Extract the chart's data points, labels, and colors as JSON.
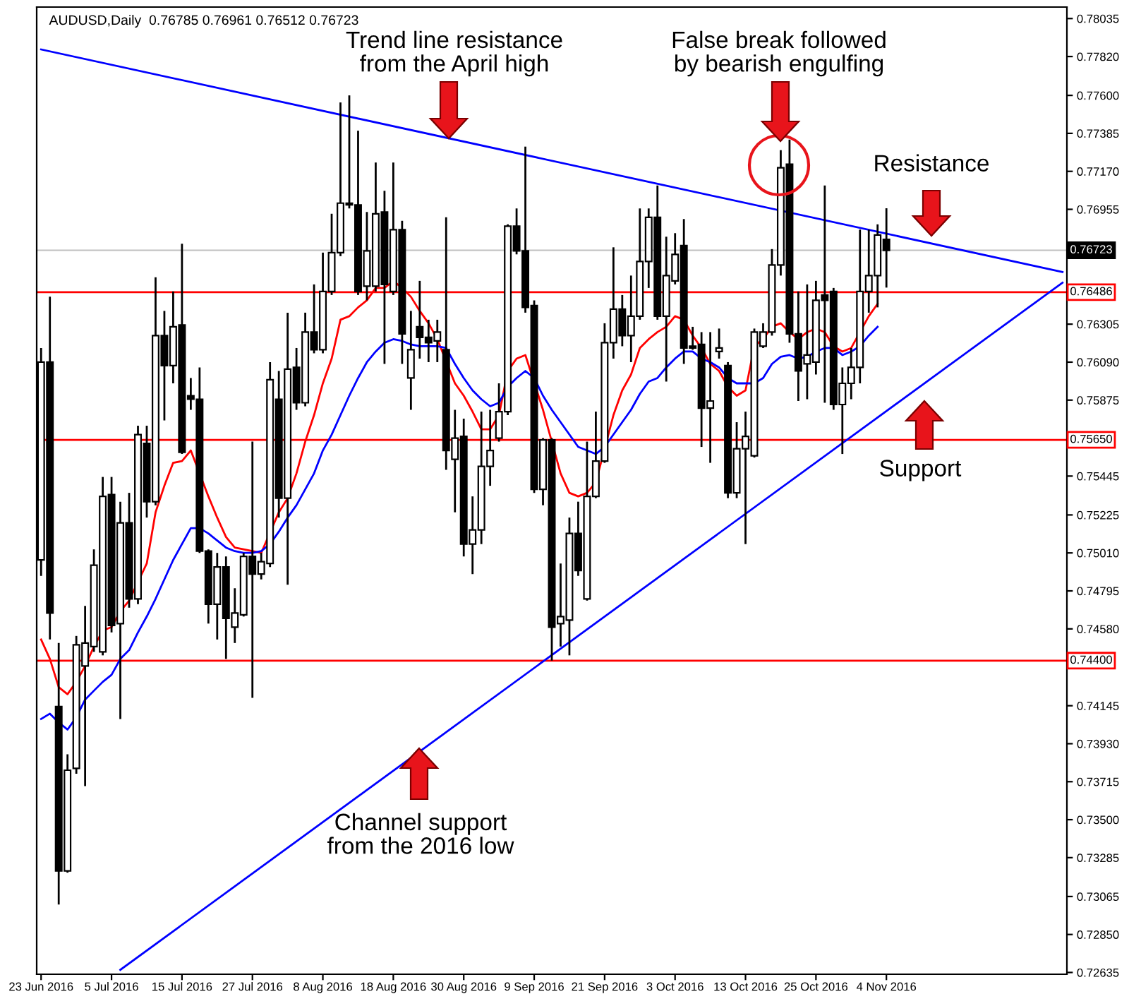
{
  "chart_data": {
    "type": "candlestick",
    "title": "AUDUSD,Daily  0.76785 0.76961 0.76512 0.76723",
    "annotations": [
      "Trend line resistance\nfrom the April high",
      "False break followed\nby bearish engulfing",
      "Resistance",
      "Support",
      "Channel support\nfrom the 2016 low"
    ],
    "categories": [
      "23 Jun 2016",
      null,
      null,
      null,
      null,
      null,
      null,
      null,
      "5 Jul 2016",
      null,
      null,
      null,
      null,
      null,
      null,
      null,
      "15 Jul 2016",
      null,
      null,
      null,
      null,
      null,
      null,
      null,
      "27 Jul 2016",
      null,
      null,
      null,
      null,
      null,
      null,
      null,
      "8 Aug 2016",
      null,
      null,
      null,
      null,
      null,
      null,
      null,
      "18 Aug 2016",
      null,
      null,
      null,
      null,
      null,
      null,
      null,
      "30 Aug 2016",
      null,
      null,
      null,
      null,
      null,
      null,
      null,
      "9 Sep 2016",
      null,
      null,
      null,
      null,
      null,
      null,
      null,
      "21 Sep 2016",
      null,
      null,
      null,
      null,
      null,
      null,
      null,
      "3 Oct 2016",
      null,
      null,
      null,
      null,
      null,
      null,
      null,
      "13 Oct 2016",
      null,
      null,
      null,
      null,
      null,
      null,
      null,
      "25 Oct 2016",
      null,
      null,
      null,
      null,
      null,
      null,
      null,
      "4 Nov 2016",
      null,
      null,
      null,
      null,
      null,
      null,
      null,
      null,
      null,
      null,
      null,
      null,
      null,
      null,
      null,
      null,
      null,
      null,
      null,
      null
    ],
    "ohlc": [
      [
        0.7497,
        0.7617,
        0.7488,
        0.7609
      ],
      [
        0.7609,
        0.7646,
        0.7452,
        0.7467
      ],
      [
        0.7414,
        0.745,
        0.7302,
        0.7321
      ],
      [
        0.7321,
        0.7387,
        0.732,
        0.7378
      ],
      [
        0.7379,
        0.7454,
        0.7376,
        0.7449
      ],
      [
        0.7437,
        0.7471,
        0.7369,
        0.745
      ],
      [
        0.7448,
        0.7503,
        0.7445,
        0.7494
      ],
      [
        0.7445,
        0.7544,
        0.7443,
        0.7533
      ],
      [
        0.7534,
        0.7544,
        0.7456,
        0.746
      ],
      [
        0.7461,
        0.753,
        0.7407,
        0.7518
      ],
      [
        0.7518,
        0.7535,
        0.747,
        0.7475
      ],
      [
        0.7475,
        0.7573,
        0.7472,
        0.7568
      ],
      [
        0.7563,
        0.7573,
        0.7521,
        0.753
      ],
      [
        0.753,
        0.7657,
        0.7528,
        0.7624
      ],
      [
        0.7624,
        0.7638,
        0.7576,
        0.7607
      ],
      [
        0.7607,
        0.7649,
        0.7597,
        0.7629
      ],
      [
        0.763,
        0.7676,
        0.7557,
        0.7558
      ],
      [
        0.759,
        0.76,
        0.7582,
        0.7588
      ],
      [
        0.7588,
        0.7606,
        0.7501,
        0.7502
      ],
      [
        0.7502,
        0.7503,
        0.7461,
        0.7472
      ],
      [
        0.7472,
        0.7501,
        0.7452,
        0.7493
      ],
      [
        0.7493,
        0.7499,
        0.7441,
        0.7464
      ],
      [
        0.7459,
        0.7481,
        0.745,
        0.7467
      ],
      [
        0.7466,
        0.7501,
        0.7465,
        0.7499
      ],
      [
        0.7499,
        0.7564,
        0.7419,
        0.7489
      ],
      [
        0.7489,
        0.7501,
        0.7486,
        0.7496
      ],
      [
        0.7495,
        0.7609,
        0.7493,
        0.7599
      ],
      [
        0.7588,
        0.7604,
        0.7521,
        0.7532
      ],
      [
        0.7532,
        0.7637,
        0.7483,
        0.7605
      ],
      [
        0.7606,
        0.7617,
        0.7582,
        0.7586
      ],
      [
        0.7586,
        0.7637,
        0.7584,
        0.7626
      ],
      [
        0.7626,
        0.7653,
        0.7614,
        0.7616
      ],
      [
        0.7616,
        0.7671,
        0.7614,
        0.7649
      ],
      [
        0.7649,
        0.7693,
        0.7647,
        0.7671
      ],
      [
        0.7671,
        0.7756,
        0.7669,
        0.7699
      ],
      [
        0.7699,
        0.776,
        0.7696,
        0.7698
      ],
      [
        0.7698,
        0.774,
        0.7647,
        0.7649
      ],
      [
        0.7652,
        0.7694,
        0.7644,
        0.7672
      ],
      [
        0.7652,
        0.7722,
        0.7649,
        0.7693
      ],
      [
        0.7694,
        0.7706,
        0.7608,
        0.7653
      ],
      [
        0.7649,
        0.7722,
        0.7647,
        0.7684
      ],
      [
        0.7684,
        0.7689,
        0.7608,
        0.7625
      ],
      [
        0.76,
        0.7638,
        0.7582,
        0.7616
      ],
      [
        0.7629,
        0.7655,
        0.7611,
        0.7623
      ],
      [
        0.7623,
        0.7633,
        0.7609,
        0.762
      ],
      [
        0.7621,
        0.7633,
        0.7609,
        0.7626
      ],
      [
        0.7616,
        0.7691,
        0.7548,
        0.7559
      ],
      [
        0.7554,
        0.7582,
        0.7524,
        0.7566
      ],
      [
        0.7567,
        0.7577,
        0.7499,
        0.7506
      ],
      [
        0.7506,
        0.7533,
        0.7489,
        0.7514
      ],
      [
        0.7514,
        0.7581,
        0.7506,
        0.755
      ],
      [
        0.755,
        0.7582,
        0.7539,
        0.7559
      ],
      [
        0.7566,
        0.7597,
        0.7564,
        0.7581
      ],
      [
        0.7581,
        0.7687,
        0.7579,
        0.7686
      ],
      [
        0.7686,
        0.7696,
        0.767,
        0.7672
      ],
      [
        0.7672,
        0.7731,
        0.7637,
        0.764
      ],
      [
        0.7641,
        0.7644,
        0.7535,
        0.7537
      ],
      [
        0.7537,
        0.7566,
        0.7528,
        0.7565
      ],
      [
        0.7565,
        0.7566,
        0.744,
        0.7459
      ],
      [
        0.7461,
        0.7495,
        0.7448,
        0.7465
      ],
      [
        0.7463,
        0.7521,
        0.7443,
        0.7512
      ],
      [
        0.7512,
        0.753,
        0.7488,
        0.7491
      ],
      [
        0.7475,
        0.7564,
        0.7474,
        0.7533
      ],
      [
        0.7533,
        0.7581,
        0.7532,
        0.7553
      ],
      [
        0.7553,
        0.7631,
        0.7552,
        0.762
      ],
      [
        0.762,
        0.7674,
        0.7611,
        0.7639
      ],
      [
        0.7639,
        0.7647,
        0.7618,
        0.7624
      ],
      [
        0.7624,
        0.7658,
        0.7609,
        0.7635
      ],
      [
        0.7635,
        0.7696,
        0.7633,
        0.7666
      ],
      [
        0.7666,
        0.7696,
        0.7651,
        0.7691
      ],
      [
        0.7691,
        0.7709,
        0.7633,
        0.7635
      ],
      [
        0.7635,
        0.768,
        0.7598,
        0.7658
      ],
      [
        0.7655,
        0.7682,
        0.7653,
        0.767
      ],
      [
        0.7675,
        0.769,
        0.7608,
        0.7617
      ],
      [
        0.7618,
        0.7629,
        0.7616,
        0.7617
      ],
      [
        0.7619,
        0.7626,
        0.7561,
        0.7583
      ],
      [
        0.7583,
        0.7626,
        0.7552,
        0.7587
      ],
      [
        0.7615,
        0.7628,
        0.7611,
        0.7617
      ],
      [
        0.7607,
        0.7609,
        0.7532,
        0.7535
      ],
      [
        0.7535,
        0.7575,
        0.7532,
        0.756
      ],
      [
        0.756,
        0.7581,
        0.7506,
        0.7567
      ],
      [
        0.7556,
        0.7628,
        0.7555,
        0.7626
      ],
      [
        0.7618,
        0.7631,
        0.7617,
        0.7626
      ],
      [
        0.7626,
        0.7673,
        0.7624,
        0.7664
      ],
      [
        0.7664,
        0.7729,
        0.7658,
        0.7719
      ],
      [
        0.7721,
        0.7735,
        0.762,
        0.7625
      ],
      [
        0.7625,
        0.7649,
        0.7587,
        0.7604
      ],
      [
        0.7608,
        0.7653,
        0.7588,
        0.7613
      ],
      [
        0.7609,
        0.7655,
        0.7602,
        0.7644
      ],
      [
        0.7647,
        0.7709,
        0.7586,
        0.7644
      ],
      [
        0.7649,
        0.7651,
        0.7582,
        0.7585
      ],
      [
        0.7585,
        0.7606,
        0.7557,
        0.7597
      ],
      [
        0.7597,
        0.7617,
        0.7588,
        0.7606
      ],
      [
        0.7606,
        0.7684,
        0.7597,
        0.7649
      ],
      [
        0.7649,
        0.7684,
        0.7637,
        0.7658
      ],
      [
        0.7658,
        0.7687,
        0.764,
        0.7681
      ],
      [
        0.76785,
        0.76961,
        0.76512,
        0.76723
      ],
      null,
      null,
      null,
      null,
      null,
      null,
      null,
      null,
      null,
      null,
      null,
      null,
      null,
      null,
      null,
      null,
      null,
      null,
      null,
      null
    ],
    "series": [
      {
        "type": "line",
        "color": "#ff0000",
        "values": [
          0.7452,
          0.7441,
          0.7425,
          0.7421,
          0.7428,
          0.7437,
          0.7448,
          0.7457,
          0.7459,
          0.7468,
          0.7474,
          null,
          0.7495,
          0.7524,
          0.7539,
          0.7552,
          0.7553,
          0.7559,
          null,
          0.7533,
          0.7521,
          0.751,
          0.7504,
          0.7503,
          0.7502,
          0.7501,
          null,
          0.7524,
          0.7532,
          0.7546,
          0.7564,
          0.7579,
          0.7597,
          0.7611,
          0.7633,
          0.7635,
          0.764,
          0.7644,
          0.7651,
          0.7651,
          0.7655,
          0.7651,
          0.7646,
          0.7638,
          0.7631,
          0.7622,
          null,
          0.7597,
          0.759,
          0.7581,
          0.7571,
          0.7571,
          0.7579,
          0.7604,
          0.7611,
          0.7613,
          null,
          0.7582,
          null,
          0.7546,
          0.7535,
          0.7533,
          0.7535,
          0.7541,
          null,
          0.7579,
          0.7593,
          0.7602,
          0.7617,
          0.7622,
          0.7626,
          0.7629,
          0.7635,
          0.7633,
          0.7624,
          0.7617,
          0.7608,
          0.7604,
          0.7595,
          0.759,
          0.7593,
          0.7618,
          0.7622,
          0.7629,
          0.7631,
          0.7626,
          0.7622,
          0.7626,
          0.7628,
          0.7626,
          0.7618,
          0.7615,
          0.7617,
          null,
          0.7635,
          0.7642,
          null,
          null,
          null,
          null,
          null,
          null,
          null,
          null,
          null,
          null,
          null,
          null,
          null,
          null,
          null,
          null,
          null,
          null,
          null,
          null,
          null
        ]
      },
      {
        "type": "line",
        "color": "#0000ff",
        "values": [
          0.7407,
          0.741,
          0.7405,
          0.7401,
          0.7408,
          0.7418,
          0.7423,
          0.7428,
          0.7432,
          0.7441,
          0.7446,
          0.7456,
          0.7465,
          0.7475,
          0.7486,
          0.7497,
          0.7506,
          0.7515,
          0.7515,
          0.7512,
          0.7508,
          0.7504,
          0.7502,
          0.7501,
          0.7501,
          0.7502,
          0.7506,
          0.7513,
          0.7521,
          0.7528,
          0.7537,
          0.7546,
          0.7559,
          0.7568,
          0.7579,
          0.759,
          0.76,
          0.7609,
          0.7615,
          0.762,
          0.7622,
          0.7621,
          0.7619,
          0.7618,
          0.7618,
          0.7618,
          0.7617,
          0.7608,
          0.76,
          0.7593,
          0.7588,
          0.7584,
          0.7586,
          0.7595,
          0.76,
          0.7604,
          0.76,
          0.759,
          0.7582,
          0.7575,
          0.7568,
          0.7561,
          0.7559,
          0.7557,
          0.7561,
          0.7568,
          0.7575,
          0.7582,
          0.7591,
          0.7598,
          0.76,
          0.7606,
          0.7611,
          0.7615,
          0.7615,
          0.7611,
          0.7609,
          0.7606,
          0.76,
          0.7597,
          0.7597,
          0.7597,
          0.76,
          0.7608,
          0.7612,
          0.7613,
          0.7611,
          0.7612,
          0.7615,
          0.7617,
          0.7617,
          0.7613,
          0.7615,
          0.7618,
          0.7624,
          0.7629,
          null,
          null,
          null,
          null,
          null,
          null,
          null,
          null,
          null,
          null,
          null,
          null,
          null,
          null,
          null,
          null,
          null,
          null,
          null,
          null,
          null
        ]
      },
      {
        "type": "line",
        "color": "#0000ff",
        "values": [
          0.7786,
          null,
          null,
          null,
          null,
          null,
          null,
          null,
          null,
          null,
          null,
          null,
          null,
          null,
          null,
          null,
          null,
          null,
          null,
          null,
          null,
          null,
          null,
          null,
          null,
          null,
          null,
          null,
          null,
          null,
          null,
          null,
          null,
          null,
          null,
          null,
          null,
          null,
          null,
          null,
          null,
          null,
          null,
          null,
          null,
          null,
          null,
          null,
          null,
          null,
          null,
          null,
          null,
          null,
          null,
          null,
          null,
          null,
          null,
          null,
          null,
          null,
          null,
          null,
          null,
          null,
          null,
          null,
          null,
          null,
          null,
          null,
          null,
          null,
          null,
          null,
          null,
          null,
          null,
          null,
          null,
          null,
          null,
          null,
          null,
          null,
          null,
          null,
          null,
          null,
          null,
          null,
          null,
          null,
          null,
          null,
          null,
          null,
          null,
          null,
          null,
          null,
          null,
          null,
          null,
          null,
          null,
          null,
          null,
          null,
          null,
          null,
          null,
          null,
          null,
          null,
          0.766
        ]
      },
      {
        "type": "line",
        "color": "#0000ff",
        "values": [
          null,
          null,
          null,
          null,
          null,
          null,
          null,
          null,
          null,
          0.7265,
          null,
          null,
          null,
          null,
          null,
          null,
          null,
          null,
          null,
          null,
          null,
          null,
          null,
          null,
          null,
          null,
          null,
          null,
          null,
          null,
          null,
          null,
          null,
          null,
          null,
          null,
          null,
          null,
          null,
          null,
          null,
          null,
          null,
          null,
          null,
          null,
          null,
          null,
          null,
          null,
          null,
          null,
          null,
          null,
          null,
          null,
          null,
          null,
          null,
          null,
          null,
          null,
          null,
          null,
          null,
          null,
          null,
          null,
          null,
          null,
          null,
          null,
          null,
          null,
          null,
          null,
          null,
          null,
          null,
          null,
          null,
          null,
          null,
          null,
          null,
          null,
          null,
          null,
          null,
          null,
          null,
          null,
          null,
          null,
          null,
          null,
          null,
          null,
          null,
          null,
          null,
          null,
          null,
          null,
          null,
          null,
          null,
          null,
          null,
          null,
          null,
          null,
          null,
          null,
          null,
          null,
          0.7654
        ]
      }
    ],
    "ref_lines": [
      {
        "axis": "y",
        "value": 0.76723,
        "label": "0.76723",
        "color": "#c0c0c0"
      },
      {
        "axis": "y",
        "value": 0.76486,
        "label": "0.76486",
        "color": "#ff0000"
      },
      {
        "axis": "y",
        "value": 0.7565,
        "label": "0.75650",
        "color": "#ff0000"
      },
      {
        "axis": "y",
        "value": 0.744,
        "label": "0.74400",
        "color": "#ff0000"
      }
    ],
    "ylim": [
      0.72625,
      0.781
    ],
    "yticks": [
      0.78035,
      {
        "value": 0.7782,
        "label": "0.77820"
      },
      {
        "value": 0.776,
        "label": "0.77600"
      },
      0.77385,
      {
        "value": 0.7717,
        "label": "0.77170"
      },
      0.76955,
      0.76305,
      {
        "value": 0.7609,
        "label": "0.76090"
      },
      0.75875,
      0.75445,
      0.75225,
      {
        "value": 0.7501,
        "label": "0.75010"
      },
      0.74795,
      {
        "value": 0.7458,
        "label": "0.74580"
      },
      0.74145,
      {
        "value": 0.7393,
        "label": "0.73930"
      },
      0.73715,
      {
        "value": 0.735,
        "label": "0.73500"
      },
      0.73285,
      0.73065,
      {
        "value": 0.7285,
        "label": "0.72850"
      },
      0.72635
    ],
    "grid": false,
    "legend": false
  }
}
